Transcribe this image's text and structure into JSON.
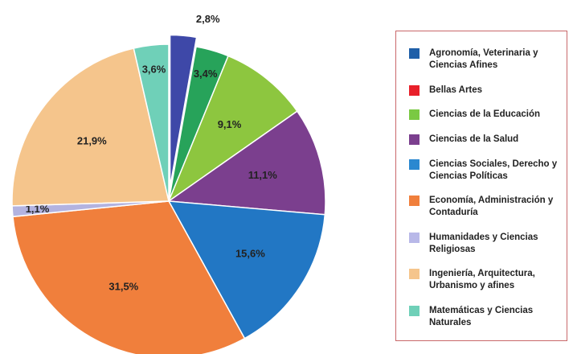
{
  "chart_data": {
    "type": "pie",
    "categories": [
      "Agronomía, Veterinaria y Ciencias Afines",
      "Bellas Artes",
      "Ciencias de la Educación",
      "Ciencias de la Salud",
      "Ciencias Sociales, Derecho y Ciencias Políticas",
      "Economía, Administración y Contaduría",
      "Humanidades y Ciencias Religiosas",
      "Ingeniería, Arquitectura, Urbanismo y afines",
      "Matemáticas y Ciencias Naturales"
    ],
    "values": [
      2.8,
      3.4,
      9.1,
      11.1,
      15.6,
      31.5,
      1.1,
      21.9,
      3.6
    ],
    "value_labels": [
      "2,8%",
      "3,4%",
      "9,1%",
      "11,1%",
      "15,6%",
      "31,5%",
      "1,1%",
      "21,9%",
      "3,6%"
    ],
    "colors": [
      "#3e48a8",
      "#27a35a",
      "#8dc63f",
      "#7b3f8e",
      "#2277c4",
      "#f07f3c",
      "#b3b3e0",
      "#f5c58c",
      "#6fd0b8"
    ],
    "legend_colors": [
      "#1f5fa8",
      "#e8202a",
      "#7ac943",
      "#7b3f8e",
      "#2a88d0",
      "#f07f3c",
      "#b8b8e8",
      "#f5c58c",
      "#6fd0b8"
    ],
    "exploded": [
      0
    ],
    "legend": "right"
  }
}
